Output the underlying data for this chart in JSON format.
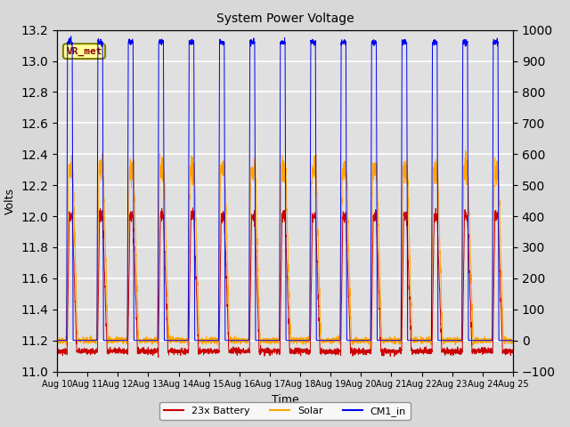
{
  "title": "System Power Voltage",
  "xlabel": "Time",
  "ylabel_left": "Volts",
  "ylim_left": [
    11.0,
    13.2
  ],
  "ylim_right": [
    -100,
    1000
  ],
  "yticks_left": [
    11.0,
    11.2,
    11.4,
    11.6,
    11.8,
    12.0,
    12.2,
    12.4,
    12.6,
    12.8,
    13.0,
    13.2
  ],
  "yticks_right": [
    -100,
    0,
    100,
    200,
    300,
    400,
    500,
    600,
    700,
    800,
    900,
    1000
  ],
  "xtick_labels": [
    "Aug 10",
    "Aug 11",
    "Aug 12",
    "Aug 13",
    "Aug 14",
    "Aug 15",
    "Aug 16",
    "Aug 17",
    "Aug 18",
    "Aug 19",
    "Aug 20",
    "Aug 21",
    "Aug 22",
    "Aug 23",
    "Aug 24",
    "Aug 25"
  ],
  "fig_bg_color": "#d8d8d8",
  "plot_bg_color": "#e0e0e0",
  "grid_color": "#ffffff",
  "color_battery": "#cc0000",
  "color_solar": "#ffa500",
  "color_cm1": "#0000ee",
  "label_battery": "23x Battery",
  "label_solar": "Solar",
  "label_cm1": "CM1_in",
  "annotation_text": "VR_met",
  "n_days": 15,
  "n_pts_per_day": 200,
  "seed": 42
}
